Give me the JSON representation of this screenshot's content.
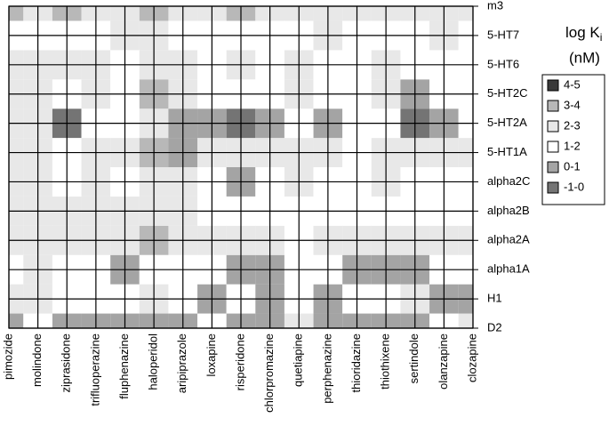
{
  "chart_data": {
    "type": "contour",
    "legend_title": "log K",
    "legend_subscript": "i",
    "legend_unit": "(nM)",
    "x_categories": [
      "pimozide",
      "molindone",
      "ziprasidone",
      "trifluoperazine",
      "fluphenazine",
      "haloperidol",
      "aripiprazole",
      "loxapine",
      "risperidone",
      "chlorpromazine",
      "quetiapine",
      "perphenazine",
      "thioridazine",
      "thiothixene",
      "sertindole",
      "olanzapine",
      "clozapine"
    ],
    "y_categories": [
      "D2",
      "H1",
      "alpha1A",
      "alpha2A",
      "alpha2B",
      "alpha2C",
      "5-HT1A",
      "5-HT2A",
      "5-HT2C",
      "5-HT6",
      "5-HT7",
      "m3"
    ],
    "levels": [
      {
        "label": "4-5",
        "range": [
          4,
          5
        ],
        "color": "#3a3a3a"
      },
      {
        "label": "3-4",
        "range": [
          3,
          4
        ],
        "color": "#b8b8b8"
      },
      {
        "label": "2-3",
        "range": [
          2,
          3
        ],
        "color": "#e8e8e8"
      },
      {
        "label": "1-2",
        "range": [
          1,
          2
        ],
        "color": "#ffffff"
      },
      {
        "label": "0-1",
        "range": [
          0,
          1
        ],
        "color": "#a4a4a4"
      },
      {
        "label": "-1-0",
        "range": [
          -1,
          0
        ],
        "color": "#747474"
      }
    ],
    "z": [
      [
        0.5,
        1.5,
        0.8,
        0.5,
        0.3,
        0.5,
        0.5,
        1.3,
        0.5,
        0.8,
        2.5,
        0.3,
        0.8,
        0.3,
        0.5,
        1.3,
        2.3
      ],
      [
        2.5,
        2.5,
        1.5,
        1.5,
        1.5,
        2.8,
        1.5,
        0.5,
        1.5,
        0.5,
        1.5,
        0.5,
        1.0,
        1.5,
        2.5,
        0.8,
        0.8
      ],
      [
        1.5,
        2.5,
        1.5,
        1.5,
        0.5,
        1.5,
        1.5,
        1.5,
        0.5,
        0.0,
        1.5,
        1.5,
        0.8,
        0.8,
        0.5,
        1.5,
        1.5
      ],
      [
        2.5,
        2.5,
        2.5,
        2.5,
        2.5,
        3.0,
        2.5,
        2.5,
        2.5,
        2.5,
        1.5,
        2.5,
        2.5,
        2.5,
        2.5,
        2.5,
        2.5
      ],
      [
        2.5,
        2.5,
        2.5,
        2.5,
        2.5,
        2.5,
        2.5,
        1.5,
        1.5,
        1.5,
        1.5,
        1.5,
        1.5,
        1.5,
        1.5,
        1.5,
        1.5
      ],
      [
        2.5,
        2.5,
        1.5,
        2.5,
        1.5,
        2.5,
        2.5,
        1.5,
        0.8,
        1.5,
        2.5,
        1.5,
        1.5,
        2.5,
        1.5,
        1.5,
        1.5
      ],
      [
        2.5,
        2.5,
        1.5,
        2.5,
        2.5,
        3.0,
        0.5,
        2.5,
        2.5,
        2.5,
        2.5,
        2.5,
        1.5,
        2.5,
        2.5,
        2.5,
        2.5
      ],
      [
        2.5,
        2.5,
        -0.5,
        1.5,
        1.5,
        2.5,
        0.5,
        0.8,
        -0.5,
        0.8,
        1.5,
        0.5,
        1.5,
        1.5,
        -0.5,
        0.8,
        1.5
      ],
      [
        2.5,
        2.5,
        1.5,
        2.5,
        1.5,
        3.0,
        2.5,
        1.5,
        1.5,
        1.5,
        2.5,
        1.5,
        1.5,
        2.5,
        0.5,
        1.5,
        1.5
      ],
      [
        2.5,
        2.5,
        2.5,
        2.5,
        1.5,
        2.5,
        2.5,
        1.5,
        2.5,
        1.5,
        2.5,
        1.5,
        1.5,
        2.5,
        1.5,
        1.5,
        1.5
      ],
      [
        1.5,
        1.5,
        1.5,
        1.5,
        2.5,
        2.5,
        1.5,
        1.5,
        1.5,
        1.5,
        1.5,
        2.5,
        1.5,
        1.5,
        1.5,
        2.5,
        1.5
      ],
      [
        3.5,
        2.5,
        3.5,
        2.5,
        2.5,
        3.5,
        2.5,
        2.5,
        3.5,
        2.5,
        2.5,
        2.5,
        2.5,
        2.5,
        2.5,
        2.5,
        2.5
      ]
    ]
  }
}
